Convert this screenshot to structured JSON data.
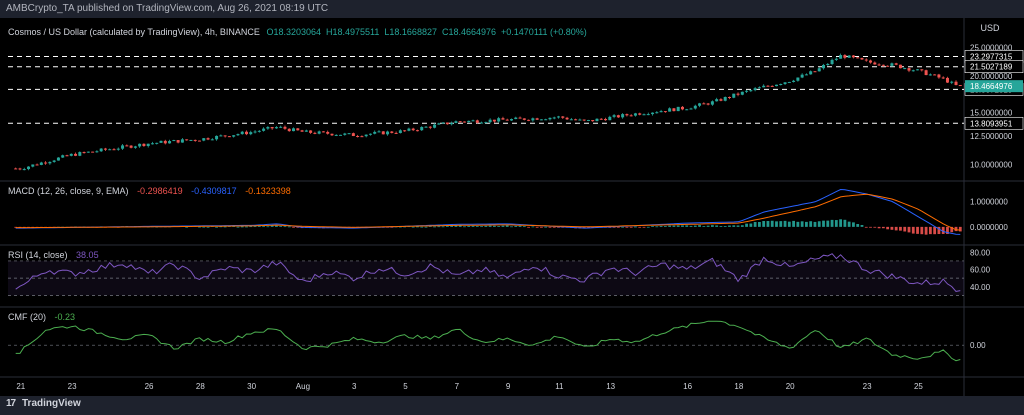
{
  "header": {
    "publish_line": "AMBCrypto_TA published on TradingView.com, Aug 26, 2021 08:19 UTC"
  },
  "footer": {
    "brand": "TradingView",
    "logo_glyph": "17"
  },
  "colors": {
    "up": "#26a69a",
    "down": "#ef5350",
    "macd": "#2962ff",
    "signal": "#ff6d00",
    "rsi": "#7e57c2",
    "cmf": "#4caf50",
    "price_tag": "#26a69a"
  },
  "chart_data": {
    "type": "candlestick",
    "legend": {
      "symbol": "Cosmos / US Dollar (calculated by TradingView), 4h, BINANCE",
      "ohlc": [
        {
          "label": "O",
          "value": "18.3203064"
        },
        {
          "label": "H",
          "value": "18.4975511"
        },
        {
          "label": "L",
          "value": "18.1668827"
        },
        {
          "label": "C",
          "value": "18.4664976"
        },
        {
          "label": "",
          "value": "+0.1470111 (+0.80%)"
        }
      ]
    },
    "currency": "USD",
    "price_axis": {
      "scale": "log",
      "range": [
        9.0,
        26.5
      ],
      "ticks": [
        "25.0000000",
        "20.0000000",
        "15.0000000",
        "12.5000000",
        "10.0000000"
      ]
    },
    "horizontal_levels": [
      "23.2977315",
      "21.5027189",
      "18.0072319",
      "13.8093951"
    ],
    "current_price": "18.4664976",
    "x_ticks": [
      "21",
      "23",
      "26",
      "28",
      "30",
      "Aug",
      "3",
      "5",
      "7",
      "9",
      "11",
      "13",
      "16",
      "18",
      "20",
      "23",
      "25"
    ],
    "x_tick_days": [
      0,
      2,
      5,
      7,
      9,
      11,
      13,
      15,
      17,
      19,
      21,
      23,
      26,
      28,
      30,
      33,
      35
    ],
    "x_range_days": [
      -0.5,
      36.7
    ],
    "price_anchors": [
      [
        0,
        9.7
      ],
      [
        2,
        10.8
      ],
      [
        5,
        11.8
      ],
      [
        7,
        12.2
      ],
      [
        9,
        12.9
      ],
      [
        10,
        13.4
      ],
      [
        11,
        12.9
      ],
      [
        13,
        12.6
      ],
      [
        15,
        13.0
      ],
      [
        17,
        14.0
      ],
      [
        19,
        14.2
      ],
      [
        21,
        14.5
      ],
      [
        22,
        14.0
      ],
      [
        24,
        14.9
      ],
      [
        26,
        15.6
      ],
      [
        27,
        16.3
      ],
      [
        28,
        17.4
      ],
      [
        29,
        18.4
      ],
      [
        30,
        19.3
      ],
      [
        31,
        20.8
      ],
      [
        32,
        23.5
      ],
      [
        33,
        22.3
      ],
      [
        34,
        21.8
      ],
      [
        35,
        20.8
      ],
      [
        36,
        19.5
      ],
      [
        36.5,
        18.46
      ]
    ],
    "macd": {
      "label": "MACD (12, 26, close, 9, EMA)",
      "values": [
        "-0.2986419",
        "-0.4309817",
        "-0.1323398"
      ],
      "range": [
        -0.6,
        1.7
      ],
      "ticks": [
        "1.0000000",
        "0.0000000"
      ],
      "macd_anchors": [
        [
          0,
          -0.05
        ],
        [
          5,
          0.02
        ],
        [
          9,
          0.06
        ],
        [
          10,
          0.12
        ],
        [
          11,
          -0.02
        ],
        [
          13,
          -0.05
        ],
        [
          17,
          0.1
        ],
        [
          19,
          0.12
        ],
        [
          22,
          -0.05
        ],
        [
          26,
          0.15
        ],
        [
          28,
          0.2
        ],
        [
          29,
          0.6
        ],
        [
          31,
          1.0
        ],
        [
          32,
          1.5
        ],
        [
          33,
          1.3
        ],
        [
          34,
          1.0
        ],
        [
          35,
          0.4
        ],
        [
          36,
          -0.2
        ],
        [
          36.5,
          -0.3
        ]
      ],
      "signal_anchors": [
        [
          0,
          -0.03
        ],
        [
          5,
          0.0
        ],
        [
          9,
          0.04
        ],
        [
          10,
          0.07
        ],
        [
          11,
          0.02
        ],
        [
          13,
          -0.02
        ],
        [
          17,
          0.06
        ],
        [
          19,
          0.08
        ],
        [
          22,
          0.0
        ],
        [
          26,
          0.1
        ],
        [
          28,
          0.15
        ],
        [
          29,
          0.35
        ],
        [
          31,
          0.8
        ],
        [
          32,
          1.2
        ],
        [
          33,
          1.3
        ],
        [
          34,
          1.1
        ],
        [
          35,
          0.7
        ],
        [
          36,
          0.1
        ],
        [
          36.5,
          -0.13
        ]
      ]
    },
    "rsi": {
      "label": "RSI (14, close)",
      "value": "38.05",
      "range": [
        20,
        85
      ],
      "ticks": [
        "80.00",
        "60.00",
        "40.00"
      ],
      "band": [
        30,
        70
      ],
      "anchors": [
        [
          0,
          40
        ],
        [
          1,
          60
        ],
        [
          2,
          55
        ],
        [
          4,
          68
        ],
        [
          5,
          55
        ],
        [
          6,
          66
        ],
        [
          7,
          50
        ],
        [
          8,
          62
        ],
        [
          9,
          58
        ],
        [
          10,
          68
        ],
        [
          11,
          45
        ],
        [
          12,
          58
        ],
        [
          13,
          50
        ],
        [
          14,
          62
        ],
        [
          15,
          55
        ],
        [
          16,
          64
        ],
        [
          17,
          52
        ],
        [
          18,
          60
        ],
        [
          19,
          50
        ],
        [
          20,
          66
        ],
        [
          21,
          52
        ],
        [
          22,
          48
        ],
        [
          23,
          62
        ],
        [
          24,
          56
        ],
        [
          25,
          66
        ],
        [
          26,
          60
        ],
        [
          27,
          70
        ],
        [
          28,
          48
        ],
        [
          29,
          74
        ],
        [
          30,
          62
        ],
        [
          31,
          72
        ],
        [
          32,
          76
        ],
        [
          33,
          60
        ],
        [
          34,
          52
        ],
        [
          35,
          44
        ],
        [
          36,
          46
        ],
        [
          36.5,
          38
        ]
      ]
    },
    "cmf": {
      "label": "CMF (20)",
      "value": "-0.23",
      "range": [
        -0.45,
        0.55
      ],
      "ticks": [
        "0.00"
      ],
      "anchors": [
        [
          0,
          -0.1
        ],
        [
          1,
          0.25
        ],
        [
          2,
          0.3
        ],
        [
          3,
          0.2
        ],
        [
          4,
          0.1
        ],
        [
          5,
          0.15
        ],
        [
          6,
          -0.05
        ],
        [
          7,
          0.1
        ],
        [
          8,
          0.05
        ],
        [
          9,
          0.2
        ],
        [
          10,
          0.25
        ],
        [
          11,
          -0.05
        ],
        [
          12,
          0.0
        ],
        [
          13,
          0.1
        ],
        [
          14,
          0.05
        ],
        [
          15,
          0.15
        ],
        [
          16,
          0.1
        ],
        [
          17,
          0.25
        ],
        [
          18,
          0.05
        ],
        [
          19,
          0.1
        ],
        [
          20,
          0.0
        ],
        [
          21,
          0.15
        ],
        [
          22,
          -0.05
        ],
        [
          23,
          0.1
        ],
        [
          24,
          0.05
        ],
        [
          25,
          0.2
        ],
        [
          26,
          0.3
        ],
        [
          27,
          0.4
        ],
        [
          28,
          0.3
        ],
        [
          29,
          0.1
        ],
        [
          30,
          -0.05
        ],
        [
          31,
          0.25
        ],
        [
          32,
          -0.05
        ],
        [
          33,
          0.1
        ],
        [
          34,
          -0.15
        ],
        [
          35,
          -0.2
        ],
        [
          36,
          -0.1
        ],
        [
          36.5,
          -0.23
        ]
      ]
    }
  }
}
